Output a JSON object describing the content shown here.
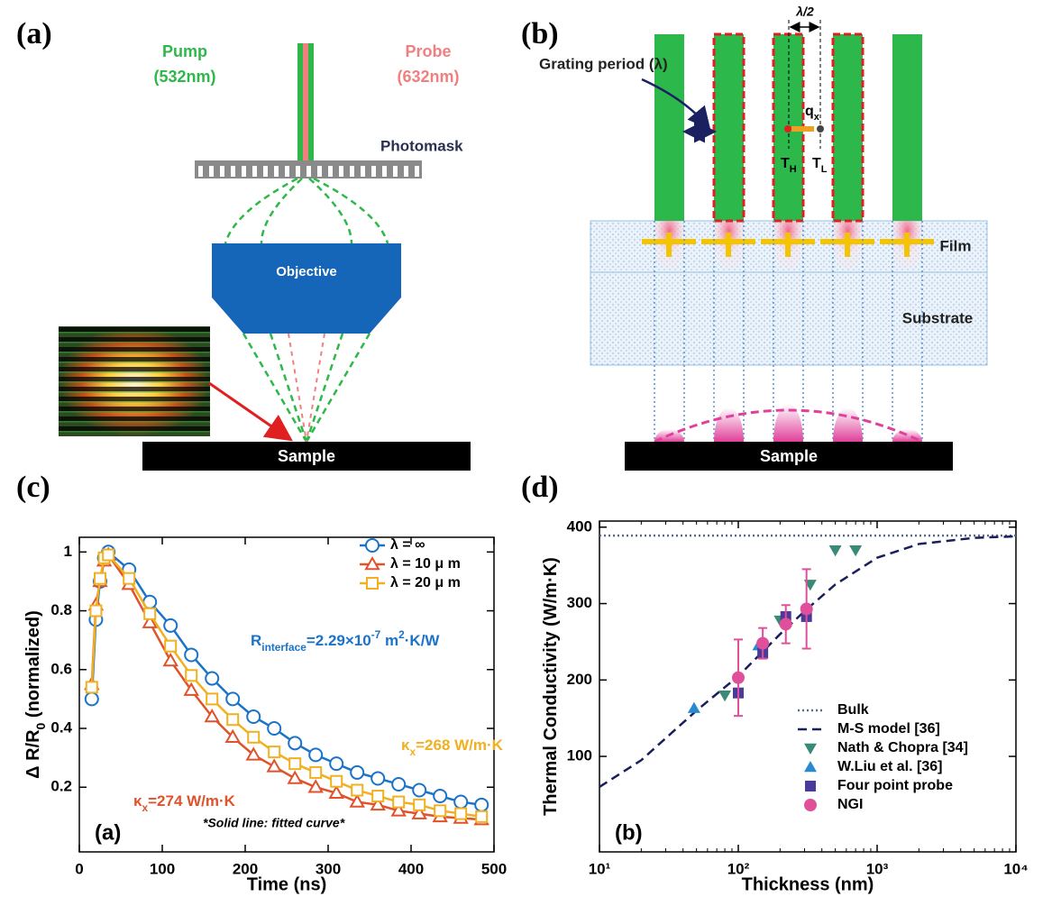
{
  "panels": {
    "a": {
      "label": "(a)",
      "pump": "Pump",
      "pump_wavelength": "(532nm)",
      "probe": "Probe",
      "probe_wavelength": "(632nm)",
      "photomask": "Photomask",
      "objective": "Objective",
      "sample": "Sample"
    },
    "b": {
      "label": "(b)",
      "grating_period": "Grating period (λ)",
      "half_period": "λ/2",
      "heat_flux": "q",
      "heat_flux_sub": "x",
      "hot": "T",
      "hot_sub": "H",
      "cold": "T",
      "cold_sub": "L",
      "film": "Film",
      "substrate": "Substrate",
      "sample": "Sample"
    },
    "c": {
      "label": "(c)"
    },
    "d": {
      "label": "(d)"
    }
  },
  "chart_data": [
    {
      "type": "scatter",
      "x_label": "Time (ns)",
      "y_label": [
        {
          "text": "Δ R/R"
        },
        {
          "text": "0",
          "pos": "sub"
        },
        {
          "text": " (normalized)"
        }
      ],
      "panel_tag": "(a)",
      "note": "*Solid line: fitted curve*",
      "xlim": [
        0,
        500
      ],
      "xticks": [
        0,
        100,
        200,
        300,
        400,
        500
      ],
      "ylim": [
        -0.02,
        1.05
      ],
      "yticks": [
        0.2,
        0.4,
        0.6,
        0.8,
        1
      ],
      "legend": "upper right",
      "x": [
        15,
        20,
        25,
        30,
        35,
        60,
        85,
        110,
        135,
        160,
        185,
        210,
        235,
        260,
        285,
        310,
        335,
        360,
        385,
        410,
        435,
        460,
        485
      ],
      "series": [
        {
          "name": "λ = ∞",
          "color": "#1a73c8",
          "marker": "circle-open",
          "line": "solid",
          "values": [
            0.5,
            0.77,
            0.9,
            0.98,
            1.0,
            0.94,
            0.83,
            0.75,
            0.65,
            0.57,
            0.5,
            0.44,
            0.4,
            0.35,
            0.31,
            0.28,
            0.25,
            0.23,
            0.21,
            0.19,
            0.17,
            0.15,
            0.14
          ]
        },
        {
          "name": "λ = 10 μ m",
          "color": "#e0522a",
          "marker": "triangle-open",
          "line": "solid",
          "values": [
            0.55,
            0.82,
            0.9,
            0.97,
            0.99,
            0.89,
            0.76,
            0.63,
            0.53,
            0.44,
            0.37,
            0.31,
            0.27,
            0.23,
            0.2,
            0.18,
            0.15,
            0.14,
            0.12,
            0.11,
            0.1,
            0.095,
            0.09
          ]
        },
        {
          "name": "λ = 20 μ m",
          "color": "#f0b020",
          "marker": "square-open",
          "line": "solid",
          "values": [
            0.54,
            0.8,
            0.91,
            0.98,
            0.99,
            0.91,
            0.79,
            0.68,
            0.58,
            0.5,
            0.43,
            0.37,
            0.32,
            0.28,
            0.25,
            0.22,
            0.19,
            0.17,
            0.15,
            0.14,
            0.12,
            0.11,
            0.1
          ]
        }
      ],
      "annotations": [
        {
          "color": "#1a73c8",
          "parts": [
            {
              "text": "R"
            },
            {
              "text": "interface",
              "pos": "sub"
            },
            {
              "text": "=2.29×10"
            },
            {
              "text": "-7",
              "pos": "super"
            },
            {
              "text": " m"
            },
            {
              "text": "2",
              "pos": "super"
            },
            {
              "text": "·K/W"
            }
          ]
        },
        {
          "color": "#f0b020",
          "parts": [
            {
              "text": "κ"
            },
            {
              "text": "x",
              "pos": "sub"
            },
            {
              "text": "=268 W/m·K"
            }
          ]
        },
        {
          "color": "#e0522a",
          "parts": [
            {
              "text": "κ"
            },
            {
              "text": "x",
              "pos": "sub"
            },
            {
              "text": "=274 W/m·K"
            }
          ]
        }
      ]
    },
    {
      "type": "scatter",
      "x_label": "Thickness (nm)",
      "y_label": [
        {
          "text": "Thermal Conductivity (W/m·K)"
        }
      ],
      "panel_tag": "(b)",
      "xscale": "log",
      "xlim": [
        10,
        10000
      ],
      "xticks": [
        {
          "value": 10,
          "label": "10¹"
        },
        {
          "value": 100,
          "label": "10²"
        },
        {
          "value": 1000,
          "label": "10³"
        },
        {
          "value": 10000,
          "label": "10⁴"
        }
      ],
      "ylim": [
        -25,
        408
      ],
      "yticks": [
        100,
        200,
        300,
        400
      ],
      "legend": "lower right",
      "series": [
        {
          "name": "Bulk",
          "color": "#5a6a8a",
          "line": "dotted",
          "x": [
            10,
            10000
          ],
          "values": [
            389,
            389
          ]
        },
        {
          "name": "M-S model [36]",
          "color": "#1a1f5c",
          "line": "dashed",
          "x": [
            10,
            20,
            50,
            100,
            200,
            300,
            500,
            1000,
            2000,
            5000,
            10000
          ],
          "values": [
            60,
            95,
            160,
            205,
            260,
            290,
            325,
            360,
            378,
            386,
            388
          ]
        },
        {
          "name": "Nath & Chopra [34]",
          "color": "#3a8a78",
          "marker": "triangle-down",
          "x": [
            80,
            200,
            330,
            500,
            700
          ],
          "values": [
            180,
            278,
            325,
            370,
            370
          ]
        },
        {
          "name": "W.Liu et al. [36]",
          "color": "#2a8ad0",
          "marker": "triangle",
          "x": [
            48,
            140
          ],
          "values": [
            163,
            245
          ]
        },
        {
          "name": "Four point probe",
          "color": "#4b3a9a",
          "marker": "square",
          "x": [
            100,
            150,
            220,
            310
          ],
          "values": [
            183,
            235,
            283,
            283
          ]
        },
        {
          "name": "NGI",
          "color": "#e0509a",
          "marker": "circle",
          "x": [
            100,
            150,
            220,
            310
          ],
          "values": [
            203,
            248,
            273,
            293
          ],
          "errors": [
            50,
            20,
            25,
            52
          ]
        }
      ]
    }
  ]
}
